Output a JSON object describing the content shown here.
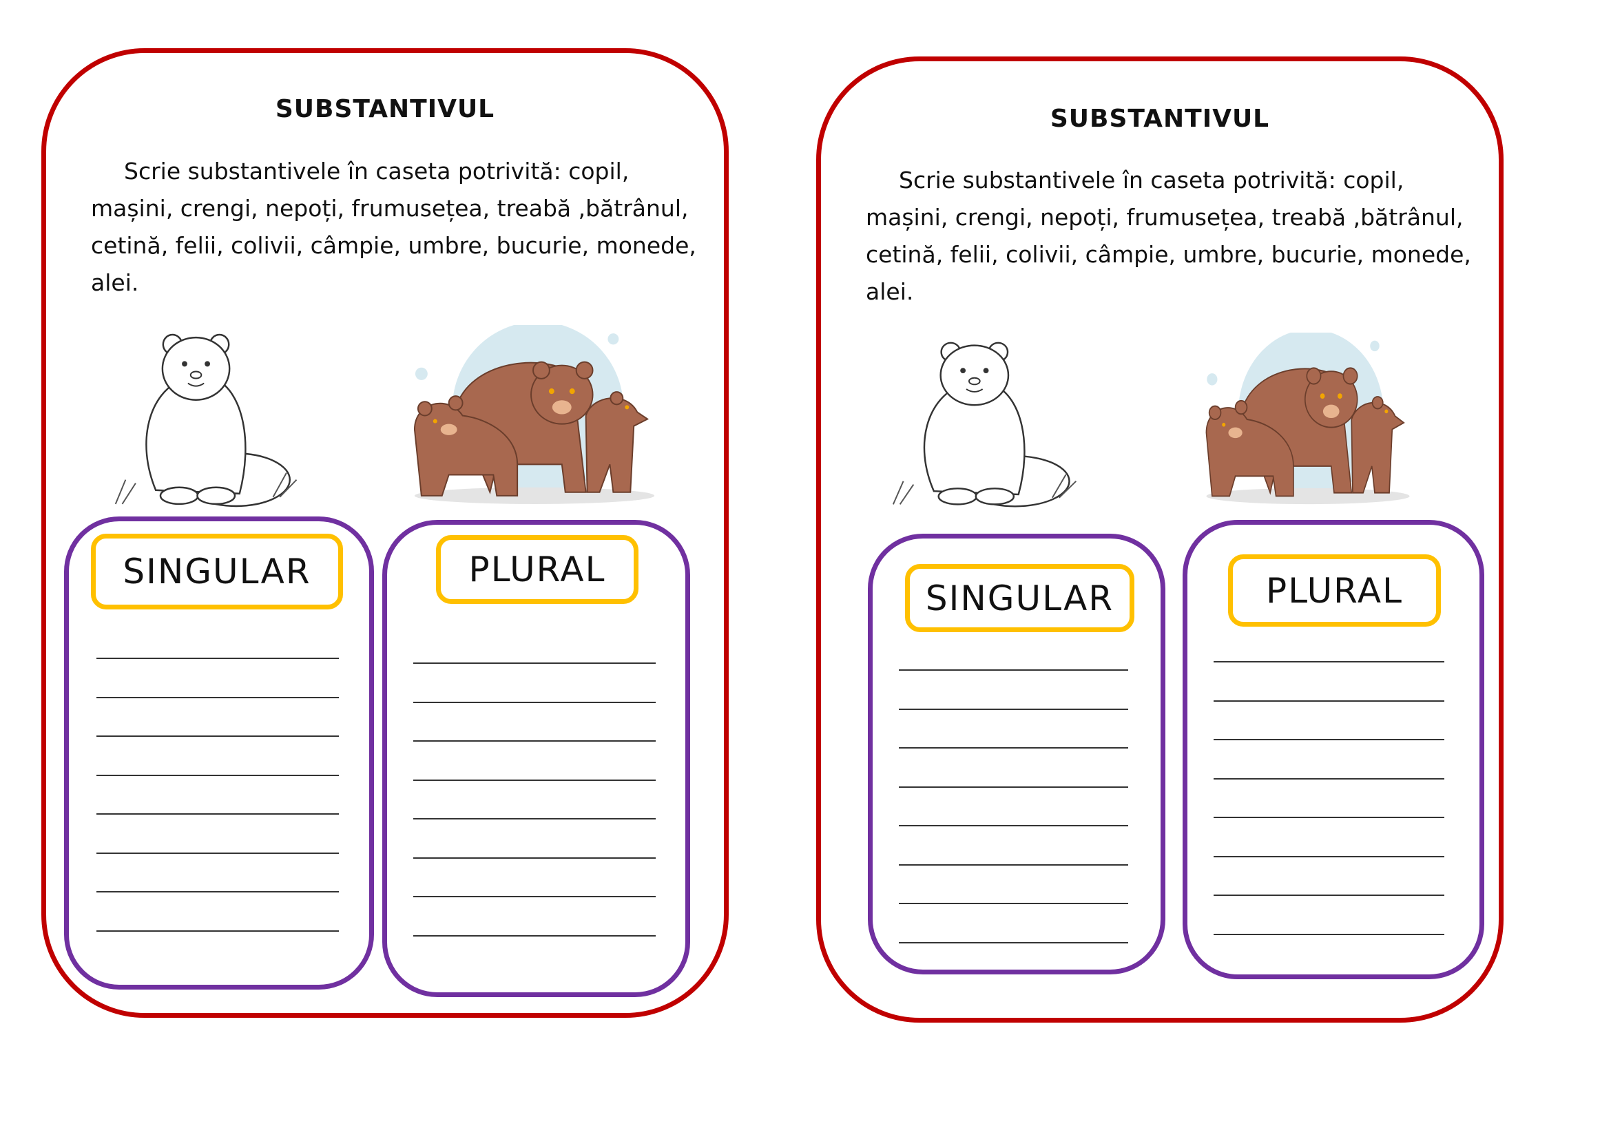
{
  "cards": [
    {
      "title": "SUBSTANTIVUL",
      "instruction_lines": [
        "Scrie  substantivele  în caseta potrivită: copil,",
        "mașini, crengi, nepoți, frumusețea, treabă ,bătrânul,",
        "cetină, felii, colivii, câmpie, umbre, bucurie, monede,",
        "alei."
      ],
      "singular_label": "SINGULAR",
      "plural_label": "PLURAL",
      "answer_lines_per_box": 8
    },
    {
      "title": "SUBSTANTIVUL",
      "instruction_lines": [
        "Scrie  substantivele  în caseta potrivită: copil,",
        "mașini, crengi, nepoți, frumusețea, treabă ,bătrânul,",
        "cetină, felii, colivii, câmpie, umbre, bucurie, monede,",
        "alei."
      ],
      "singular_label": "SINGULAR",
      "plural_label": "PLURAL",
      "answer_lines_per_box": 8
    }
  ],
  "images": {
    "singular": "polar-bear-illustration",
    "plural": "brown-bear-family-illustration"
  },
  "colors": {
    "card_border": "#c00000",
    "box_border": "#7030a0",
    "label_border": "#ffc000",
    "bear_brown": "#a8684f",
    "bubble_blue": "#d6e9f0"
  }
}
